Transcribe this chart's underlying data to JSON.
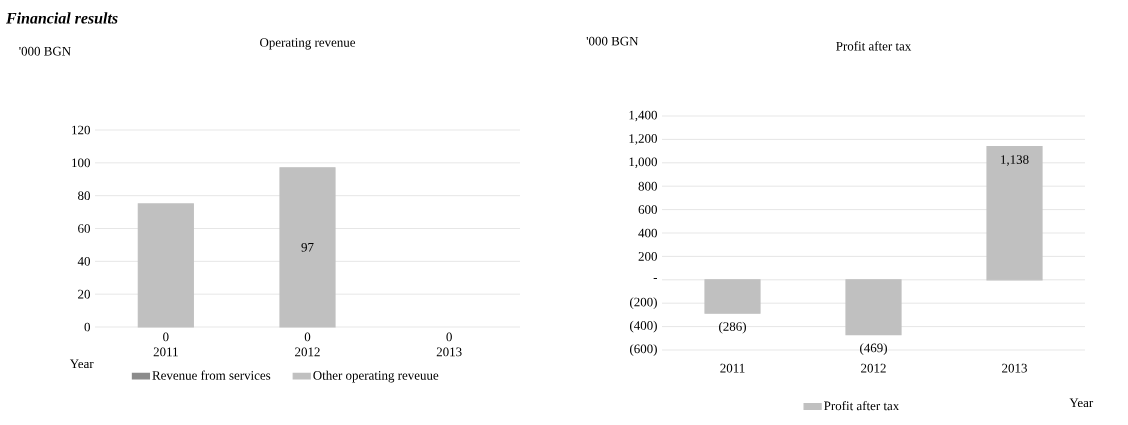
{
  "chart_data": [
    {
      "type": "bar",
      "title": "Operating revenue",
      "ylabel": "'000 BGN",
      "xlabel": "Year",
      "annotations": [
        "Financial results"
      ],
      "categories": [
        "2011",
        "2012",
        "2013"
      ],
      "stacked": true,
      "ylim": [
        0,
        120
      ],
      "yticks": [
        0,
        20,
        40,
        60,
        80,
        100,
        120
      ],
      "grid": "y",
      "legend": "bottom",
      "series": [
        {
          "name": "Revenue from services",
          "color": "#8c8c8c",
          "values": [
            0,
            0,
            0
          ],
          "value_labels": [
            "0",
            "0",
            "0"
          ]
        },
        {
          "name": "Other operating reveuue",
          "color": "#c0c0c0",
          "values": [
            75,
            97,
            0
          ],
          "value_labels": [
            null,
            "97",
            null
          ]
        }
      ]
    },
    {
      "type": "bar",
      "title": "Profit after tax",
      "ylabel": "'000 BGN",
      "xlabel": "Year",
      "categories": [
        "2011",
        "2012",
        "2013"
      ],
      "ylim": [
        -600,
        1400
      ],
      "yticks": [
        {
          "value": -600,
          "label": "(600)"
        },
        {
          "value": -400,
          "label": "(400)"
        },
        {
          "value": -200,
          "label": "(200)"
        },
        {
          "value": 0,
          "label": "-"
        },
        200,
        400,
        600,
        800,
        {
          "value": 1000,
          "label": "1,000"
        },
        {
          "value": 1200,
          "label": "1,200"
        },
        {
          "value": 1400,
          "label": "1,400"
        }
      ],
      "grid": "y",
      "legend": "bottom",
      "series": [
        {
          "name": "Profit after tax",
          "color": "#c0c0c0",
          "values": [
            -286,
            -469,
            1138
          ],
          "value_labels": [
            "(286)",
            "(469)",
            "1,138"
          ]
        }
      ]
    }
  ]
}
